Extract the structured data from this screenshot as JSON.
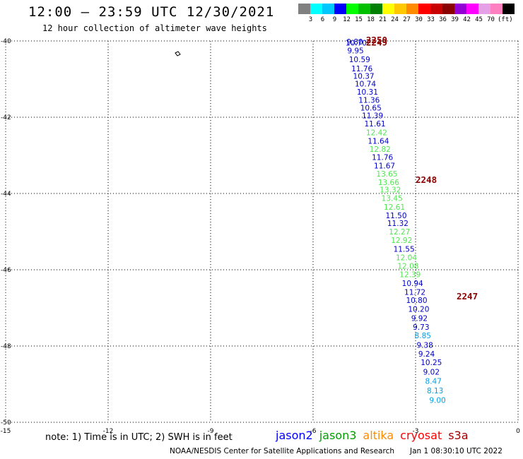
{
  "header": {
    "title": "12:00 – 23:59 UTC 12/30/2021",
    "subtitle": "12 hour collection of altimeter wave heights"
  },
  "colorbar": {
    "colors": [
      "#808080",
      "#00ffff",
      "#00c8ff",
      "#0000ff",
      "#00ff00",
      "#00c000",
      "#008000",
      "#ffff00",
      "#ffc800",
      "#ff8c00",
      "#ff0000",
      "#c80000",
      "#8b0000",
      "#9400d3",
      "#ff00ff",
      "#e6a0e6",
      "#ff80c0",
      "#000000"
    ],
    "labels": [
      "3",
      "6",
      "9",
      "12",
      "15",
      "18",
      "21",
      "24",
      "27",
      "30",
      "33",
      "36",
      "39",
      "42",
      "45",
      "70"
    ],
    "unit": "(ft)"
  },
  "chart_data": {
    "type": "scatter",
    "xlim": [
      -15,
      0
    ],
    "ylim": [
      -50,
      -40
    ],
    "x_ticks": [
      "-15",
      "-12",
      "-9",
      "-6",
      "-3",
      "0"
    ],
    "y_ticks": [
      "-40",
      "-42",
      "-44",
      "-46",
      "-48",
      "-50"
    ],
    "grid": true,
    "label_color_map": {
      "blue": "#0000c8",
      "green": "#50e650",
      "cyan": "#00a0e6"
    },
    "points": [
      {
        "lon": -5.02,
        "lat": -40.02,
        "label": "9.80",
        "color": "blue"
      },
      {
        "lon": -5.05,
        "lat": -40.05,
        "label": "10.70",
        "color": "blue"
      },
      {
        "lon": -5.0,
        "lat": -40.25,
        "label": "9.95",
        "color": "blue"
      },
      {
        "lon": -4.95,
        "lat": -40.48,
        "label": "10.59",
        "color": "blue"
      },
      {
        "lon": -4.88,
        "lat": -40.72,
        "label": "11.76",
        "color": "blue"
      },
      {
        "lon": -4.83,
        "lat": -40.92,
        "label": "10.37",
        "color": "blue"
      },
      {
        "lon": -4.78,
        "lat": -41.12,
        "label": "10.74",
        "color": "blue"
      },
      {
        "lon": -4.72,
        "lat": -41.33,
        "label": "10.31",
        "color": "blue"
      },
      {
        "lon": -4.67,
        "lat": -41.55,
        "label": "11.36",
        "color": "blue"
      },
      {
        "lon": -4.62,
        "lat": -41.75,
        "label": "10.65",
        "color": "blue"
      },
      {
        "lon": -4.57,
        "lat": -41.95,
        "label": "11.39",
        "color": "blue"
      },
      {
        "lon": -4.5,
        "lat": -42.17,
        "label": "11.61",
        "color": "blue"
      },
      {
        "lon": -4.45,
        "lat": -42.4,
        "label": "12.42",
        "color": "green"
      },
      {
        "lon": -4.4,
        "lat": -42.62,
        "label": "11.64",
        "color": "blue"
      },
      {
        "lon": -4.35,
        "lat": -42.83,
        "label": "12.82",
        "color": "green"
      },
      {
        "lon": -4.28,
        "lat": -43.05,
        "label": "11.76",
        "color": "blue"
      },
      {
        "lon": -4.22,
        "lat": -43.27,
        "label": "11.67",
        "color": "blue"
      },
      {
        "lon": -4.15,
        "lat": -43.48,
        "label": "13.65",
        "color": "green"
      },
      {
        "lon": -4.1,
        "lat": -43.7,
        "label": "13.66",
        "color": "green"
      },
      {
        "lon": -4.05,
        "lat": -43.9,
        "label": "13.32",
        "color": "green"
      },
      {
        "lon": -4.0,
        "lat": -44.12,
        "label": "13.45",
        "color": "green"
      },
      {
        "lon": -3.93,
        "lat": -44.35,
        "label": "12.61",
        "color": "green"
      },
      {
        "lon": -3.88,
        "lat": -44.57,
        "label": "11.50",
        "color": "blue"
      },
      {
        "lon": -3.83,
        "lat": -44.78,
        "label": "11.32",
        "color": "blue"
      },
      {
        "lon": -3.78,
        "lat": -45.0,
        "label": "12.27",
        "color": "green"
      },
      {
        "lon": -3.72,
        "lat": -45.22,
        "label": "12.92",
        "color": "green"
      },
      {
        "lon": -3.65,
        "lat": -45.45,
        "label": "11.55",
        "color": "blue"
      },
      {
        "lon": -3.58,
        "lat": -45.68,
        "label": "12.04",
        "color": "green"
      },
      {
        "lon": -3.53,
        "lat": -45.9,
        "label": "12.08",
        "color": "green"
      },
      {
        "lon": -3.47,
        "lat": -46.12,
        "label": "12.39",
        "color": "green"
      },
      {
        "lon": -3.4,
        "lat": -46.35,
        "label": "10.94",
        "color": "blue"
      },
      {
        "lon": -3.33,
        "lat": -46.58,
        "label": "11.72",
        "color": "blue"
      },
      {
        "lon": -3.28,
        "lat": -46.8,
        "label": "10.80",
        "color": "blue"
      },
      {
        "lon": -3.22,
        "lat": -47.03,
        "label": "10.20",
        "color": "blue"
      },
      {
        "lon": -3.13,
        "lat": -47.27,
        "label": "9.92",
        "color": "blue"
      },
      {
        "lon": -3.08,
        "lat": -47.5,
        "label": "9.73",
        "color": "blue"
      },
      {
        "lon": -3.03,
        "lat": -47.72,
        "label": "8.85",
        "color": "cyan"
      },
      {
        "lon": -2.97,
        "lat": -47.97,
        "label": "9.38",
        "color": "blue"
      },
      {
        "lon": -2.92,
        "lat": -48.2,
        "label": "9.24",
        "color": "blue"
      },
      {
        "lon": -2.85,
        "lat": -48.43,
        "label": "10.25",
        "color": "blue"
      },
      {
        "lon": -2.78,
        "lat": -48.68,
        "label": "9.02",
        "color": "blue"
      },
      {
        "lon": -2.72,
        "lat": -48.92,
        "label": "8.47",
        "color": "cyan"
      },
      {
        "lon": -2.67,
        "lat": -49.17,
        "label": "8.13",
        "color": "cyan"
      },
      {
        "lon": -2.6,
        "lat": -49.42,
        "label": "9.00",
        "color": "cyan"
      }
    ],
    "time_labels": [
      {
        "lon": -4.45,
        "lat": -39.98,
        "label": "2250"
      },
      {
        "lon": -4.45,
        "lat": -40.05,
        "label": "2249"
      },
      {
        "lon": -3.0,
        "lat": -43.65,
        "label": "2248"
      },
      {
        "lon": -1.8,
        "lat": -46.7,
        "label": "2247"
      }
    ]
  },
  "notes": {
    "note": "note: 1) Time is in UTC; 2) SWH is in feet"
  },
  "legend": {
    "items": [
      {
        "label": "jason2",
        "color": "#0000ff"
      },
      {
        "label": "jason3",
        "color": "#00a000"
      },
      {
        "label": "altika",
        "color": "#ff8c00"
      },
      {
        "label": "cryosat",
        "color": "#ff0000"
      },
      {
        "label": "s3a",
        "color": "#a00000"
      }
    ]
  },
  "footer": {
    "credit": "NOAA/NESDIS Center for Satellite Applications and Research",
    "timestamp": "Jan  1 08:30:10 UTC 2022"
  }
}
